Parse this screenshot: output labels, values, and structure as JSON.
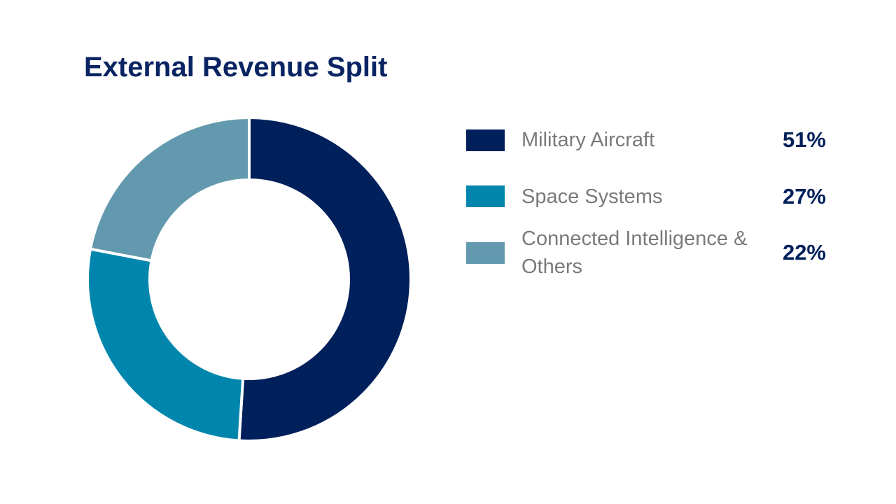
{
  "chart_data": {
    "type": "donut",
    "title": "External Revenue Split",
    "categories": [
      "Military Aircraft",
      "Space Systems",
      "Connected Intelligence & Others"
    ],
    "values": [
      51,
      27,
      22
    ],
    "value_labels": [
      "51%",
      "27%",
      "22%"
    ],
    "colors": [
      "#00205b",
      "#0086ad",
      "#6399ae"
    ]
  }
}
